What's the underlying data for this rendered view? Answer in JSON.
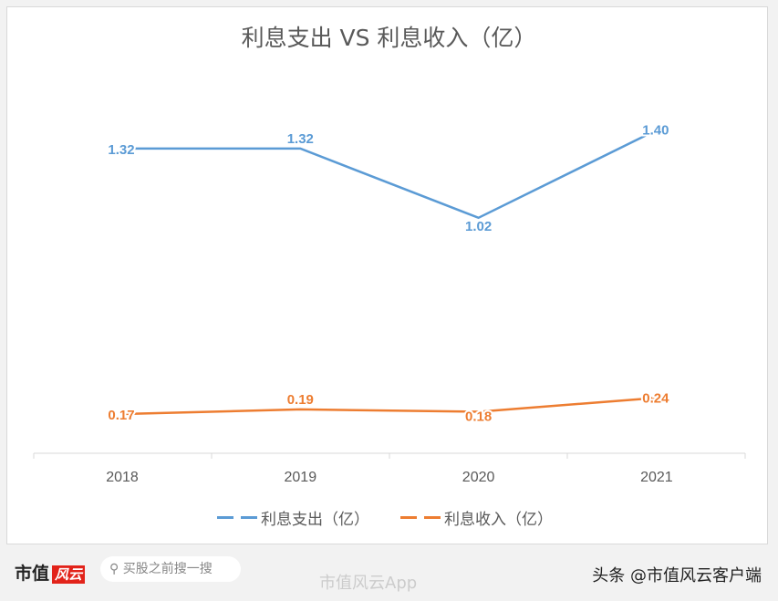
{
  "chart_data": {
    "type": "line",
    "title": "利息支出 VS 利息收入（亿）",
    "categories": [
      "2018",
      "2019",
      "2020",
      "2021"
    ],
    "series": [
      {
        "name": "利息支出（亿）",
        "values": [
          1.32,
          1.32,
          1.02,
          1.4
        ],
        "labels": [
          "1.32",
          "1.32",
          "1.02",
          "1.40"
        ],
        "color": "#5b9bd5"
      },
      {
        "name": "利息收入（亿）",
        "values": [
          0.17,
          0.19,
          0.18,
          0.24
        ],
        "labels": [
          "0.17",
          "0.19",
          "0.18",
          "0.24"
        ],
        "color": "#ed7d31"
      }
    ],
    "ylim": [
      0,
      1.6
    ],
    "grid": false,
    "legend": "bottom"
  },
  "footer": {
    "logo": "市值",
    "logo_badge": "风云",
    "search_icon": "search-icon",
    "search_placeholder": "买股之前搜一搜",
    "weibo": "市值风云App",
    "toutiao": "头条 @市值风云客户端"
  }
}
